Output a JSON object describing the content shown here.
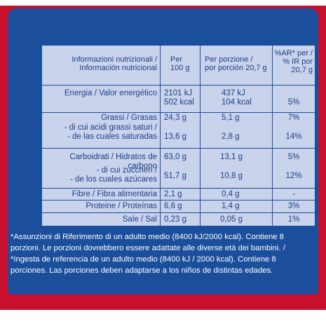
{
  "colors": {
    "panel": "#1b4f9c",
    "table_bg": "#c9d3ec",
    "border": "#c8102e",
    "text": "#1c3f86"
  },
  "header": {
    "col1_line1": "Informazioni nutrizionali /",
    "col1_line2": "Información nutricional",
    "col2_line1": "Per",
    "col2_line2": "100 g",
    "col3_line1": "Per porzione /",
    "col3_line2": "por porción 20,7 g",
    "col4_line1": "%AR* per /",
    "col4_line2": "% IR por",
    "col4_line3": "20,7 g"
  },
  "rows": {
    "energy": {
      "label": "Energia / Valor energético",
      "per100_kj": "2101 kJ",
      "per100_kcal": "502 kcal",
      "portion_kj": "437 kJ",
      "portion_kcal": "104 kcal",
      "ri": "5%"
    },
    "fat": {
      "label": "Grassi / Grasas",
      "per100": "24,3 g",
      "portion": "5,1 g",
      "ri": "7%"
    },
    "saturates": {
      "label_line1": "- di cui acidi grassi saturi /",
      "label_line2": "- de las cuales saturadas",
      "per100": "13,6 g",
      "portion": "2,8 g",
      "ri": "14%"
    },
    "carbs": {
      "label": "Carboidrati / Hidratos de carbono",
      "per100": "63,0 g",
      "portion": "13,1 g",
      "ri": "5%"
    },
    "sugars": {
      "label_line1": "- di cui zuccheri /",
      "label_line2": "- de los cuales azúcares",
      "per100": "51,7 g",
      "portion": "10,8 g",
      "ri": "12%"
    },
    "fibre": {
      "label": "Fibre / Fibra alimentaria",
      "per100": "2,1 g",
      "portion": "0,4 g",
      "ri": "-"
    },
    "protein": {
      "label": "Proteine / Proteínas",
      "per100": "6,6 g",
      "portion": "1,4 g",
      "ri": "3%"
    },
    "salt": {
      "label": "Sale / Sal",
      "per100": "0,23 g",
      "portion": "0,05 g",
      "ri": "1%"
    }
  },
  "footnote": {
    "line1": "*Assunzioni di Riferimento di un adulto medio (8400 kJ/2000 kcal). Contiene 8",
    "line2": "porzioni. Le porzioni dovrebbero essere adattate alle diverse età dei bambini. /",
    "line3": "*Ingesta de referencia de un adulto medio (8400 kJ / 2000 kcal). Contiene 8",
    "line4": "porciones. Las porciones deben adaptarse a los niños de distintas edades."
  }
}
